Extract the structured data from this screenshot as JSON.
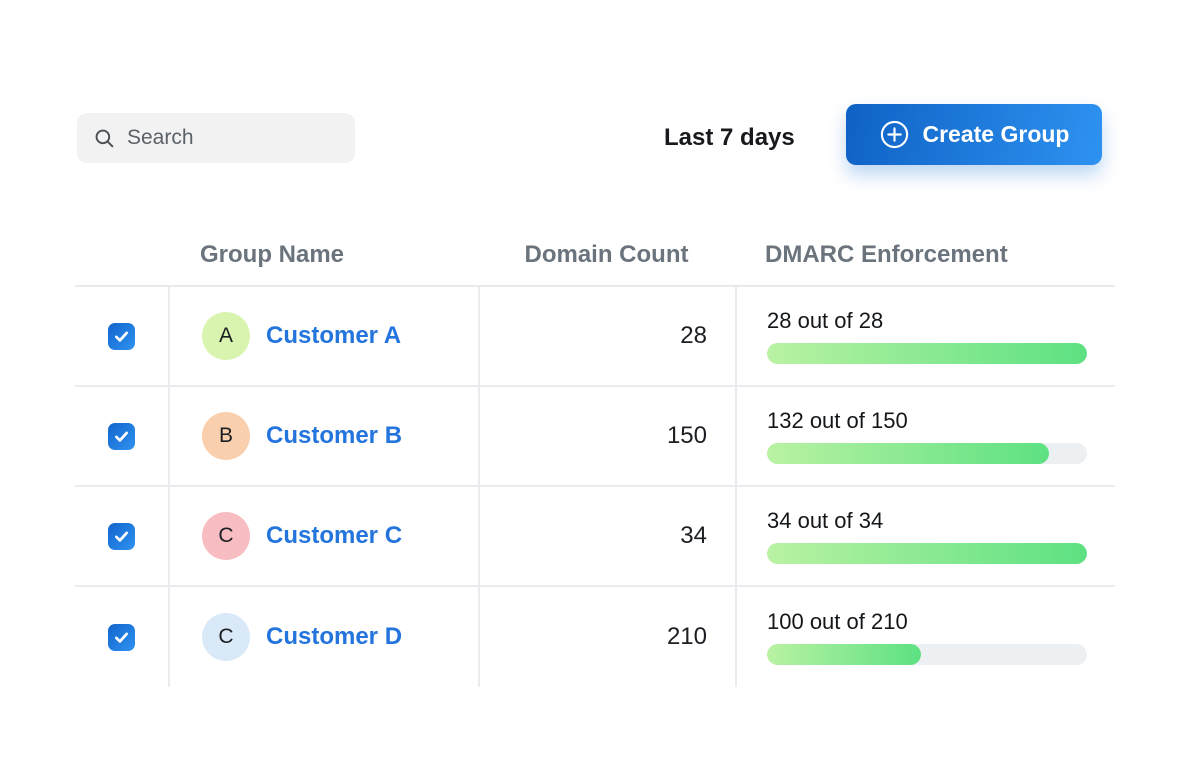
{
  "toolbar": {
    "search": {
      "placeholder": "Search"
    },
    "date_range_label": "Last 7 days",
    "create_group_label": "Create Group"
  },
  "colors": {
    "accent_blue": "#1a73d8",
    "link_blue": "#2374dd",
    "progress_green_start": "#b9f2a2",
    "progress_green_end": "#5de182",
    "track_gray": "#edf0f3"
  },
  "table": {
    "columns": {
      "name": "Group Name",
      "count": "Domain Count",
      "dmarc": "DMARC Enforcement"
    },
    "rows": [
      {
        "selected": true,
        "avatar_letter": "A",
        "avatar_color": "#d9f4ae",
        "name": "Customer A",
        "domain_count": "28",
        "enforcement_label": "28 out of 28",
        "enforced": 28,
        "total": 28
      },
      {
        "selected": true,
        "avatar_letter": "B",
        "avatar_color": "#f9cfad",
        "name": "Customer B",
        "domain_count": "150",
        "enforcement_label": "132 out of 150",
        "enforced": 132,
        "total": 150
      },
      {
        "selected": true,
        "avatar_letter": "C",
        "avatar_color": "#f7bdc2",
        "name": "Customer C",
        "domain_count": "34",
        "enforcement_label": "34 out of 34",
        "enforced": 34,
        "total": 34
      },
      {
        "selected": true,
        "avatar_letter": "C",
        "avatar_color": "#d9e9f8",
        "name": "Customer D",
        "domain_count": "210",
        "enforcement_label": "100 out of 210",
        "enforced": 100,
        "total": 210
      }
    ]
  }
}
